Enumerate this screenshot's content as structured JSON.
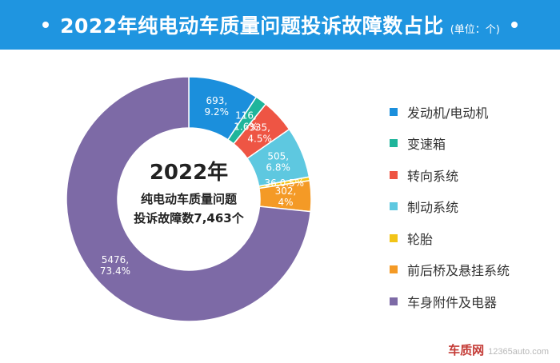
{
  "header": {
    "title": "2022年纯电动车质量问题投诉故障数占比",
    "unit": "(单位：个)"
  },
  "center": {
    "line1": "2022年",
    "line2": "纯电动车质量问题",
    "line3": "投诉故障数7,463个"
  },
  "colors": {
    "header_bg": "#1f95e0",
    "hole": "#ffffff"
  },
  "chart_data": {
    "type": "pie",
    "subtype": "donut",
    "title": "2022年纯电动车质量问题投诉故障数占比",
    "unit": "(单位：个)",
    "total": 7463,
    "slices": [
      {
        "name": "发动机/电动机",
        "value": 693,
        "percent": "9.2%",
        "label": "693,\n9.2%",
        "color": "#1b8fdc"
      },
      {
        "name": "变速箱",
        "value": 116,
        "percent": "1.6%",
        "label": "116,\n1.6%",
        "color": "#1fb59b"
      },
      {
        "name": "转向系统",
        "value": 335,
        "percent": "4.5%",
        "label": "335,\n4.5%",
        "color": "#ee5544"
      },
      {
        "name": "制动系统",
        "value": 505,
        "percent": "6.8%",
        "label": "505,\n6.8%",
        "color": "#5ec8e0"
      },
      {
        "name": "轮胎",
        "value": 36,
        "percent": "0.5%",
        "label": "36,0.5%",
        "color": "#f2c417"
      },
      {
        "name": "前后桥及悬挂系统",
        "value": 302,
        "percent": "4%",
        "label": "302,\n4%",
        "color": "#f49a26"
      },
      {
        "name": "车身附件及电器",
        "value": 5476,
        "percent": "73.4%",
        "label": "5476,\n73.4%",
        "color": "#7d6aa6"
      }
    ],
    "legend_position": "right"
  },
  "watermark": {
    "brand": "车质网",
    "site": "12365auto.com"
  }
}
